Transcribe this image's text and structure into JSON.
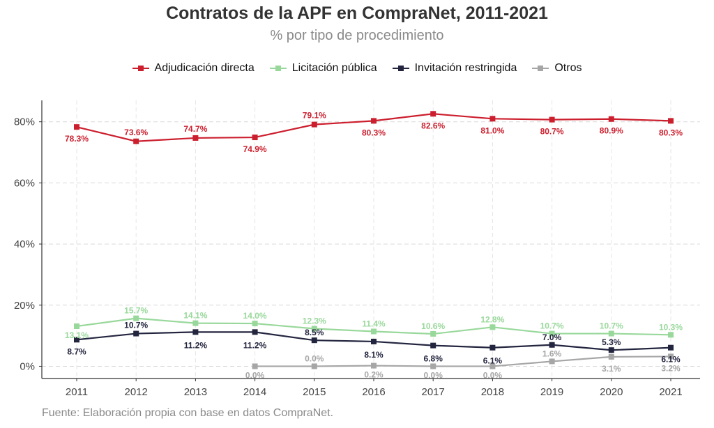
{
  "chart_data": {
    "type": "line",
    "title": "Contratos de la APF en CompraNet, 2011-2021",
    "subtitle": "% por tipo de procedimiento",
    "xlabel": "",
    "ylabel": "",
    "ylim": [
      -4,
      87
    ],
    "yticks": [
      0,
      20,
      40,
      60,
      80
    ],
    "ytick_labels": [
      "0%",
      "20%",
      "40%",
      "60%",
      "80%"
    ],
    "grid": true,
    "legend_position": "top",
    "categories": [
      "2011",
      "2012",
      "2013",
      "2014",
      "2015",
      "2016",
      "2017",
      "2018",
      "2019",
      "2020",
      "2021"
    ],
    "series": [
      {
        "name": "Adjudicación directa",
        "color": "#cc1f2e",
        "values": [
          78.3,
          73.6,
          74.7,
          74.9,
          79.1,
          80.3,
          82.6,
          81.0,
          80.7,
          80.9,
          80.3
        ],
        "labels": [
          "78.3%",
          "73.6%",
          "74.7%",
          "74.9%",
          "79.1%",
          "80.3%",
          "82.6%",
          "81.0%",
          "80.7%",
          "80.9%",
          "80.3%"
        ]
      },
      {
        "name": "Licitación pública",
        "color": "#99d89b",
        "values": [
          13.1,
          15.7,
          14.1,
          14.0,
          12.3,
          11.4,
          10.6,
          12.8,
          10.7,
          10.7,
          10.3
        ],
        "labels": [
          "13.1%",
          "15.7%",
          "14.1%",
          "14.0%",
          "12.3%",
          "11.4%",
          "10.6%",
          "12.8%",
          "10.7%",
          "10.7%",
          "10.3%"
        ]
      },
      {
        "name": "Invitación restringida",
        "color": "#23253f",
        "values": [
          8.7,
          10.7,
          11.2,
          11.2,
          8.5,
          8.1,
          6.8,
          6.1,
          7.0,
          5.3,
          6.1
        ],
        "labels": [
          "8.7%",
          "10.7%",
          "11.2%",
          "11.2%",
          "8.5%",
          "8.1%",
          "6.8%",
          "6.1%",
          "7.0%",
          "5.3%",
          "6.1%"
        ]
      },
      {
        "name": "Otros",
        "color": "#a6a6a6",
        "values": [
          null,
          null,
          null,
          0.0,
          0.0,
          0.2,
          0.0,
          0.0,
          1.6,
          3.1,
          3.2
        ],
        "labels": [
          null,
          null,
          null,
          "0.0%",
          "0.0%",
          "0.2%",
          "0.0%",
          "0.0%",
          "1.6%",
          "3.1%",
          "3.2%"
        ]
      }
    ],
    "source_note": "Fuente: Elaboración propia con base en datos CompraNet."
  }
}
